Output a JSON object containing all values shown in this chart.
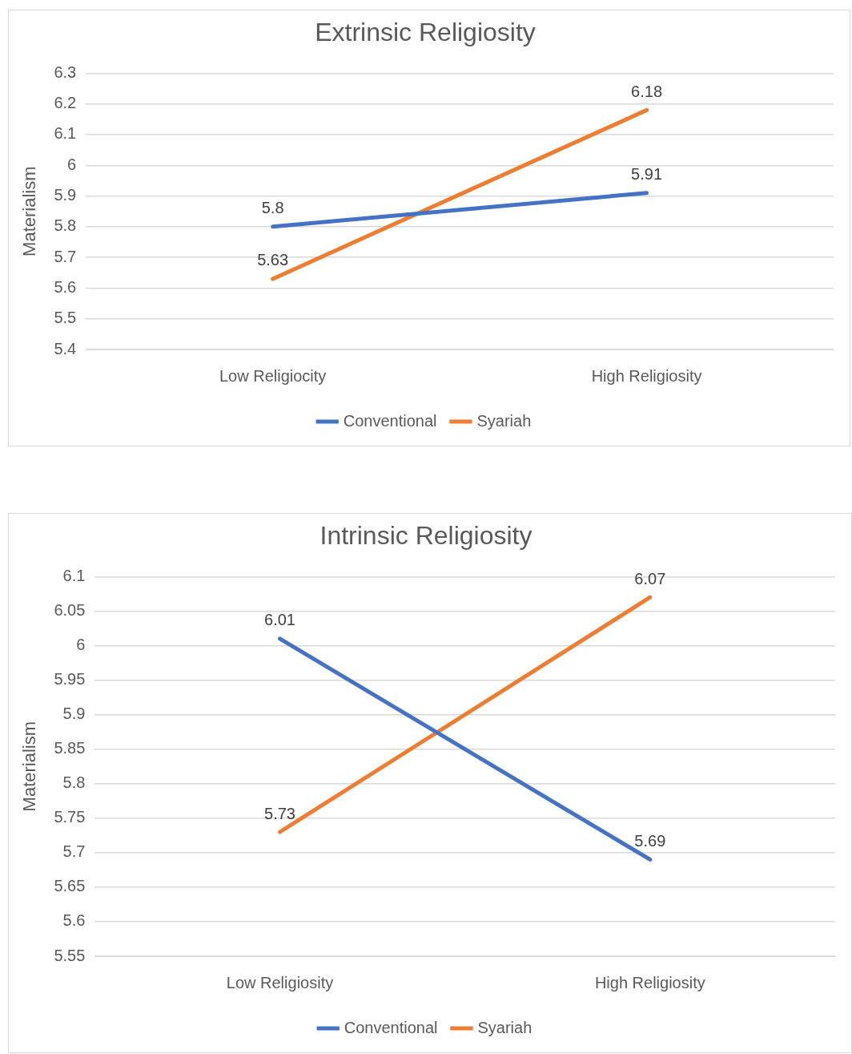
{
  "chart_data": [
    {
      "type": "line",
      "title": "Extrinsic Religiosity",
      "ylabel": "Materialism",
      "categories": [
        "Low Religiocity",
        "High Religiosity"
      ],
      "series": [
        {
          "name": "Conventional",
          "color": "#4472c4",
          "values": [
            5.8,
            5.91
          ]
        },
        {
          "name": "Syariah",
          "color": "#ed7d31",
          "values": [
            5.63,
            6.18
          ]
        }
      ],
      "ylim": [
        5.4,
        6.3
      ],
      "yticks": [
        5.4,
        5.5,
        5.6,
        5.7,
        5.8,
        5.9,
        6,
        6.1,
        6.2,
        6.3
      ],
      "grid": "y",
      "legend": "bottom",
      "marker": "none",
      "data_labels": true
    },
    {
      "type": "line",
      "title": "Intrinsic Religiosity",
      "ylabel": "Materialism",
      "categories": [
        "Low Religiosity",
        "High Religiosity"
      ],
      "series": [
        {
          "name": "Conventional",
          "color": "#4472c4",
          "values": [
            6.01,
            5.69
          ]
        },
        {
          "name": "Syariah",
          "color": "#ed7d31",
          "values": [
            5.73,
            6.07
          ]
        }
      ],
      "ylim": [
        5.55,
        6.1
      ],
      "yticks": [
        5.55,
        5.6,
        5.65,
        5.7,
        5.75,
        5.8,
        5.85,
        5.9,
        5.95,
        6,
        6.05,
        6.1
      ],
      "grid": "y",
      "legend": "bottom",
      "marker": "none",
      "data_labels": true
    }
  ]
}
